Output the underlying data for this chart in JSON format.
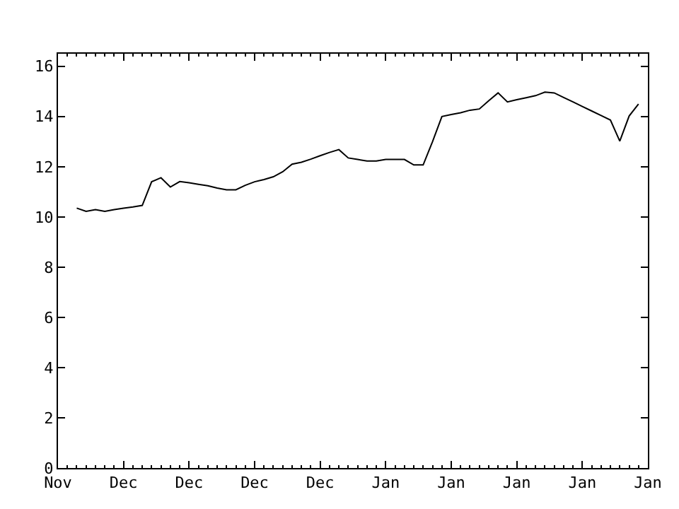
{
  "chart_data": {
    "type": "line",
    "categories": [
      "Nov",
      null,
      null,
      null,
      null,
      null,
      null,
      "Dec",
      null,
      null,
      null,
      null,
      null,
      null,
      "Dec",
      null,
      null,
      null,
      null,
      null,
      null,
      "Dec",
      null,
      null,
      null,
      null,
      null,
      null,
      "Dec",
      null,
      null,
      null,
      null,
      null,
      null,
      "Jan",
      null,
      null,
      null,
      null,
      null,
      null,
      "Jan",
      null,
      null,
      null,
      null,
      null,
      null,
      "Jan",
      null,
      null,
      null,
      null,
      null,
      null,
      "Jan",
      null,
      null,
      null,
      null,
      null,
      null,
      "Jan"
    ],
    "series": [
      {
        "color": "#000000",
        "values": [
          null,
          null,
          10.35,
          10.22,
          10.29,
          10.22,
          10.29,
          10.35,
          10.4,
          10.46,
          11.4,
          11.56,
          11.19,
          11.41,
          11.36,
          11.3,
          11.24,
          11.15,
          11.08,
          11.08,
          11.26,
          11.4,
          11.49,
          11.6,
          11.8,
          12.1,
          12.18,
          12.3,
          12.44,
          12.57,
          12.68,
          12.35,
          12.29,
          12.23,
          12.23,
          12.29,
          12.29,
          12.29,
          12.07,
          12.07,
          13.0,
          14.0,
          14.08,
          14.15,
          14.25,
          14.3,
          14.63,
          14.94,
          14.58,
          14.67,
          14.75,
          14.83,
          14.97,
          14.94,
          14.76,
          14.58,
          14.4,
          14.22,
          14.04,
          13.86,
          13.02,
          14.02,
          14.5,
          null
        ]
      }
    ],
    "ylim": [
      0,
      16.5
    ],
    "yticks": [
      0,
      2,
      4,
      6,
      8,
      10,
      12,
      14,
      16
    ],
    "line_style": "solid"
  }
}
